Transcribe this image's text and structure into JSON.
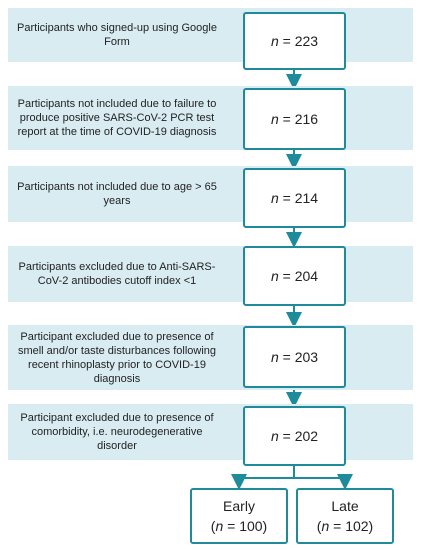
{
  "rows": [
    {
      "text": "Participants who signed-up using Google Form",
      "count": [
        "n",
        " = 223"
      ]
    },
    {
      "text": "Participants not included due to failure to produce positive SARS-CoV-2 PCR test report at the time of COVID-19 diagnosis",
      "count": [
        "n",
        " = 216"
      ]
    },
    {
      "text": "Participants not included due to age > 65 years",
      "count": [
        "n",
        " = 214"
      ]
    },
    {
      "text": "Participants excluded due to Anti-SARS-CoV-2 antibodies cutoff index <1",
      "count": [
        "n",
        " = 204"
      ]
    },
    {
      "text": "Participant excluded due to presence of smell and/or taste disturbances following recent rhinoplasty prior to COVID-19 diagnosis",
      "count": [
        "n",
        " = 203"
      ]
    },
    {
      "text": "Participant excluded due to presence of comorbidity, i.e. neurodegenerative disorder",
      "count": [
        "n",
        " = 202"
      ]
    }
  ],
  "groups": [
    {
      "label": "Early",
      "count": [
        "(",
        "n",
        " = 100)"
      ]
    },
    {
      "label": "Late",
      "count": [
        "(",
        "n",
        " = 102)"
      ]
    }
  ]
}
